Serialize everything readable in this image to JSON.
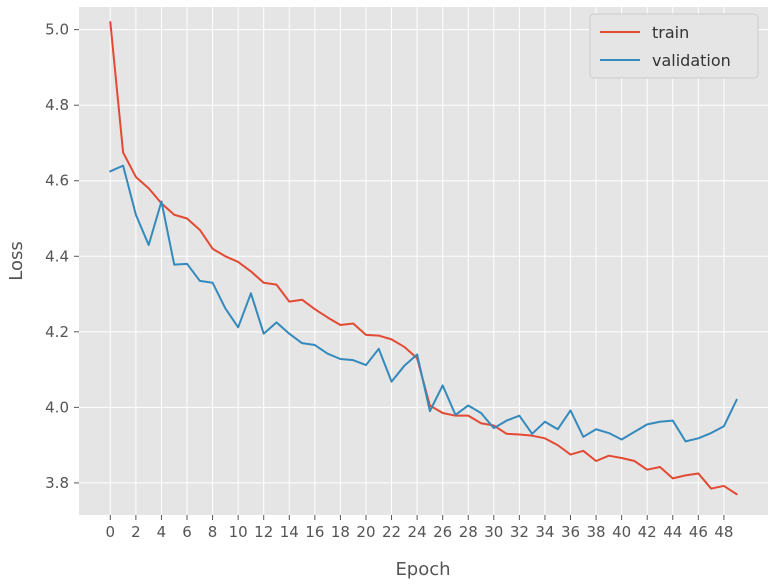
{
  "chart_data": {
    "type": "line",
    "xlabel": "Epoch",
    "ylabel": "Loss",
    "xlim": [
      -2.45,
      51.45
    ],
    "ylim": [
      3.715,
      5.06
    ],
    "xticks": [
      0,
      2,
      4,
      6,
      8,
      10,
      12,
      14,
      16,
      18,
      20,
      22,
      24,
      26,
      28,
      30,
      32,
      34,
      36,
      38,
      40,
      42,
      44,
      46,
      48
    ],
    "yticks": [
      3.8,
      4.0,
      4.2,
      4.4,
      4.6,
      4.8,
      5.0
    ],
    "ytick_labels": [
      "3.8",
      "4.0",
      "4.2",
      "4.4",
      "4.6",
      "4.8",
      "5.0"
    ],
    "grid": true,
    "legend_position": "top-right",
    "x": [
      0,
      1,
      2,
      3,
      4,
      5,
      6,
      7,
      8,
      9,
      10,
      11,
      12,
      13,
      14,
      15,
      16,
      17,
      18,
      19,
      20,
      21,
      22,
      23,
      24,
      25,
      26,
      27,
      28,
      29,
      30,
      31,
      32,
      33,
      34,
      35,
      36,
      37,
      38,
      39,
      40,
      41,
      42,
      43,
      44,
      45,
      46,
      47,
      48,
      49
    ],
    "series": [
      {
        "name": "train",
        "color": "#e24a33",
        "values": [
          5.02,
          4.675,
          4.61,
          4.58,
          4.54,
          4.51,
          4.5,
          4.47,
          4.42,
          4.4,
          4.385,
          4.36,
          4.33,
          4.325,
          4.28,
          4.285,
          4.26,
          4.238,
          4.218,
          4.222,
          4.192,
          4.19,
          4.18,
          4.16,
          4.13,
          4.005,
          3.985,
          3.978,
          3.978,
          3.958,
          3.952,
          3.93,
          3.928,
          3.925,
          3.918,
          3.9,
          3.875,
          3.885,
          3.858,
          3.872,
          3.866,
          3.858,
          3.835,
          3.842,
          3.812,
          3.82,
          3.825,
          3.785,
          3.792,
          3.77
        ]
      },
      {
        "name": "validation",
        "color": "#348abd",
        "values": [
          4.625,
          4.64,
          4.51,
          4.43,
          4.545,
          4.378,
          4.38,
          4.335,
          4.33,
          4.262,
          4.212,
          4.302,
          4.195,
          4.225,
          4.195,
          4.17,
          4.165,
          4.142,
          4.128,
          4.125,
          4.112,
          4.155,
          4.068,
          4.11,
          4.14,
          3.99,
          4.058,
          3.98,
          4.005,
          3.985,
          3.945,
          3.965,
          3.978,
          3.93,
          3.962,
          3.942,
          3.992,
          3.922,
          3.942,
          3.932,
          3.915,
          3.935,
          3.955,
          3.962,
          3.965,
          3.91,
          3.918,
          3.932,
          3.95,
          4.02
        ]
      }
    ]
  }
}
